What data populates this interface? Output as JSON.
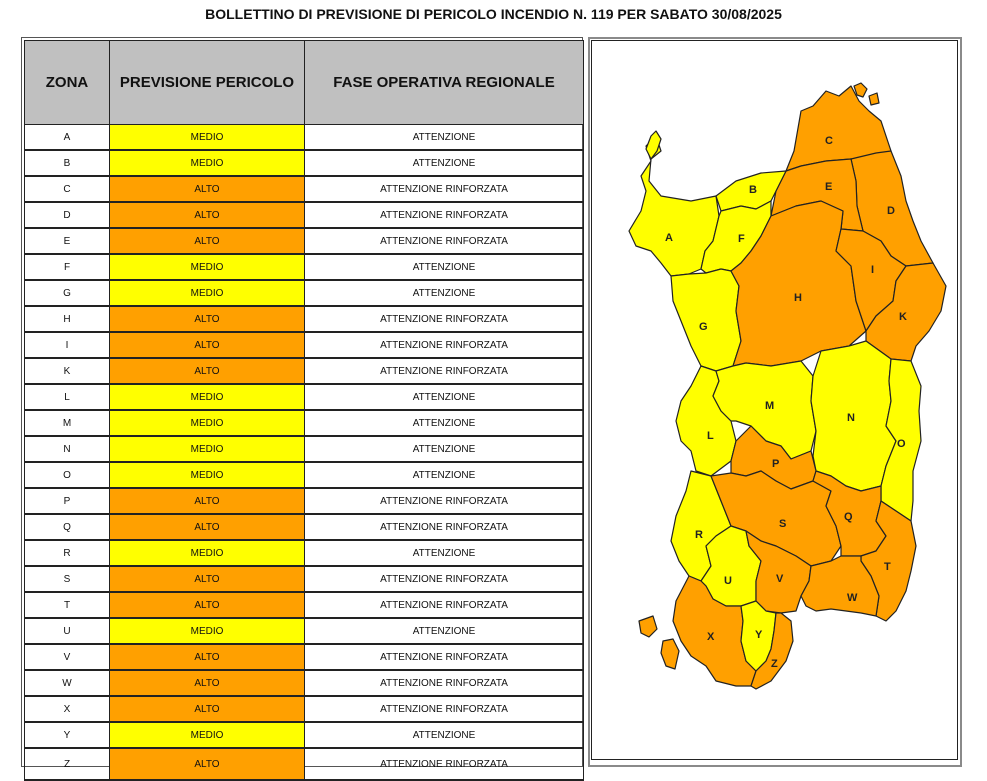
{
  "title": "BOLLETTINO DI PREVISIONE DI PERICOLO INCENDIO N. 119 PER SABATO 30/08/2025",
  "colors": {
    "medio": "#ffff00",
    "alto": "#ffa000",
    "header": "#c0c0c0",
    "border": "#222222"
  },
  "table": {
    "headers": [
      "ZONA",
      "PREVISIONE PERICOLO",
      "FASE OPERATIVA REGIONALE"
    ],
    "rows": [
      {
        "zona": "A",
        "pericolo": "MEDIO",
        "fase": "ATTENZIONE"
      },
      {
        "zona": "B",
        "pericolo": "MEDIO",
        "fase": "ATTENZIONE"
      },
      {
        "zona": "C",
        "pericolo": "ALTO",
        "fase": "ATTENZIONE RINFORZATA"
      },
      {
        "zona": "D",
        "pericolo": "ALTO",
        "fase": "ATTENZIONE RINFORZATA"
      },
      {
        "zona": "E",
        "pericolo": "ALTO",
        "fase": "ATTENZIONE RINFORZATA"
      },
      {
        "zona": "F",
        "pericolo": "MEDIO",
        "fase": "ATTENZIONE"
      },
      {
        "zona": "G",
        "pericolo": "MEDIO",
        "fase": "ATTENZIONE"
      },
      {
        "zona": "H",
        "pericolo": "ALTO",
        "fase": "ATTENZIONE RINFORZATA"
      },
      {
        "zona": "I",
        "pericolo": "ALTO",
        "fase": "ATTENZIONE RINFORZATA"
      },
      {
        "zona": "K",
        "pericolo": "ALTO",
        "fase": "ATTENZIONE RINFORZATA"
      },
      {
        "zona": "L",
        "pericolo": "MEDIO",
        "fase": "ATTENZIONE"
      },
      {
        "zona": "M",
        "pericolo": "MEDIO",
        "fase": "ATTENZIONE"
      },
      {
        "zona": "N",
        "pericolo": "MEDIO",
        "fase": "ATTENZIONE"
      },
      {
        "zona": "O",
        "pericolo": "MEDIO",
        "fase": "ATTENZIONE"
      },
      {
        "zona": "P",
        "pericolo": "ALTO",
        "fase": "ATTENZIONE RINFORZATA"
      },
      {
        "zona": "Q",
        "pericolo": "ALTO",
        "fase": "ATTENZIONE RINFORZATA"
      },
      {
        "zona": "R",
        "pericolo": "MEDIO",
        "fase": "ATTENZIONE"
      },
      {
        "zona": "S",
        "pericolo": "ALTO",
        "fase": "ATTENZIONE RINFORZATA"
      },
      {
        "zona": "T",
        "pericolo": "ALTO",
        "fase": "ATTENZIONE RINFORZATA"
      },
      {
        "zona": "U",
        "pericolo": "MEDIO",
        "fase": "ATTENZIONE"
      },
      {
        "zona": "V",
        "pericolo": "ALTO",
        "fase": "ATTENZIONE RINFORZATA"
      },
      {
        "zona": "W",
        "pericolo": "ALTO",
        "fase": "ATTENZIONE RINFORZATA"
      },
      {
        "zona": "X",
        "pericolo": "ALTO",
        "fase": "ATTENZIONE RINFORZATA"
      },
      {
        "zona": "Y",
        "pericolo": "MEDIO",
        "fase": "ATTENZIONE"
      },
      {
        "zona": "Z",
        "pericolo": "ALTO",
        "fase": "ATTENZIONE RINFORZATA"
      }
    ]
  },
  "map": {
    "labels": [
      "A",
      "B",
      "C",
      "D",
      "E",
      "F",
      "G",
      "H",
      "I",
      "K",
      "L",
      "M",
      "N",
      "O",
      "P",
      "Q",
      "R",
      "S",
      "T",
      "U",
      "V",
      "W",
      "X",
      "Y",
      "Z"
    ]
  }
}
